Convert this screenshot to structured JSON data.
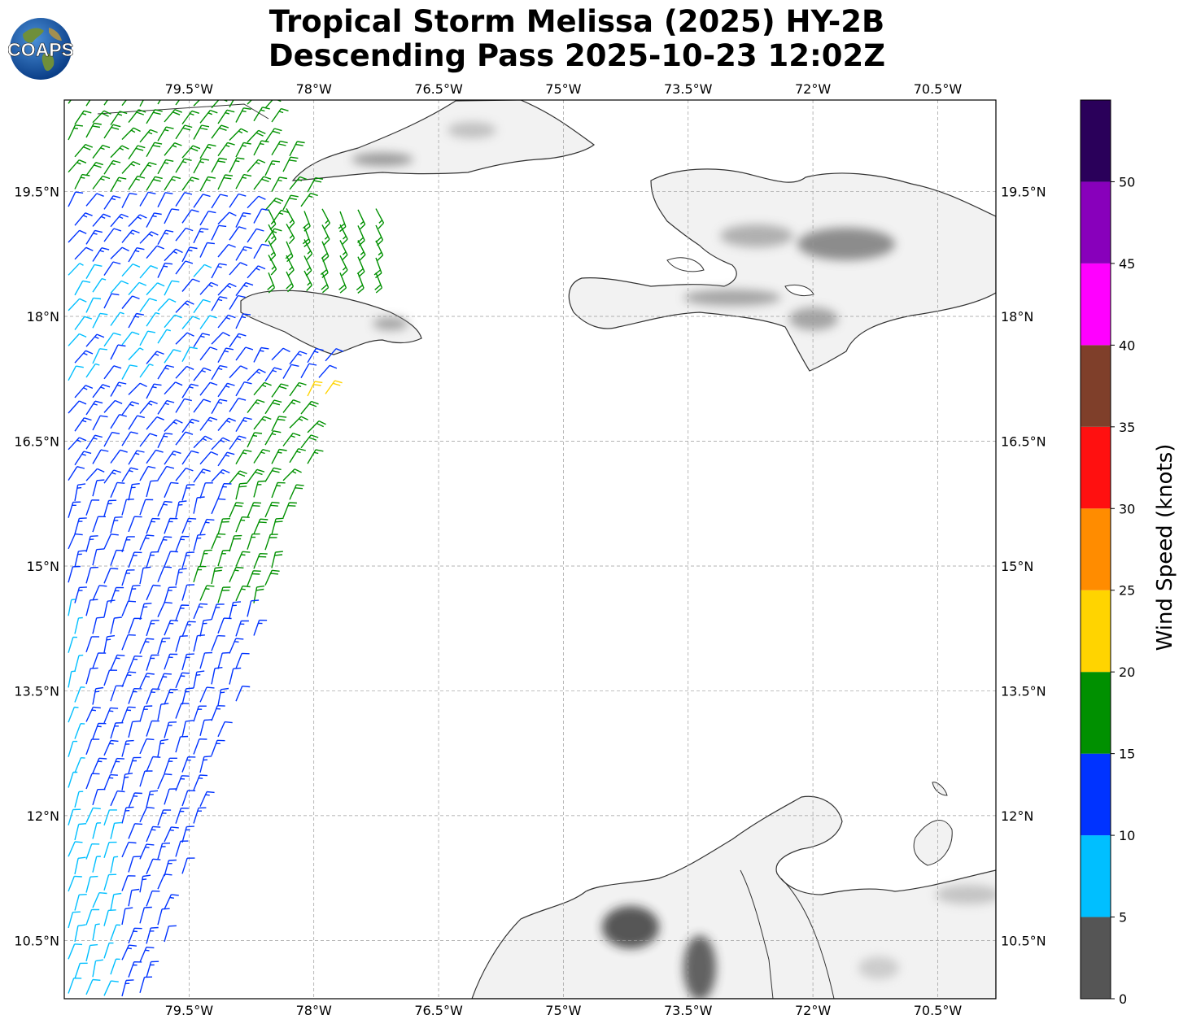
{
  "title": {
    "line1": "Tropical Storm Melissa (2025) HY-2B",
    "line2": "Descending Pass 2025-10-23 12:02Z"
  },
  "logo": {
    "text": "COAPS",
    "icon": "globe-logo-icon"
  },
  "map": {
    "lon_range": [
      -81.0,
      -69.8
    ],
    "lat_range": [
      9.8,
      20.6
    ],
    "lon_ticks": [
      {
        "value": -79.5,
        "label": "79.5°W"
      },
      {
        "value": -78.0,
        "label": "78°W"
      },
      {
        "value": -76.5,
        "label": "76.5°W"
      },
      {
        "value": -75.0,
        "label": "75°W"
      },
      {
        "value": -73.5,
        "label": "73.5°W"
      },
      {
        "value": -72.0,
        "label": "72°W"
      },
      {
        "value": -70.5,
        "label": "70.5°W"
      }
    ],
    "lat_ticks": [
      {
        "value": 19.5,
        "label": "19.5°N"
      },
      {
        "value": 18.0,
        "label": "18°N"
      },
      {
        "value": 16.5,
        "label": "16.5°N"
      },
      {
        "value": 15.0,
        "label": "15°N"
      },
      {
        "value": 13.5,
        "label": "13.5°N"
      },
      {
        "value": 12.0,
        "label": "12°N"
      },
      {
        "value": 10.5,
        "label": "10.5°N"
      }
    ],
    "grid": true,
    "land_shading": "grayscale terrain"
  },
  "colorbar": {
    "label": "Wind Speed (knots)",
    "min": 0,
    "max": 55,
    "tick_labels": [
      "0",
      "5",
      "10",
      "15",
      "20",
      "25",
      "30",
      "35",
      "40",
      "45",
      "50"
    ],
    "bins": [
      {
        "from": 0,
        "to": 5,
        "color": "#555555"
      },
      {
        "from": 5,
        "to": 10,
        "color": "#00bfff"
      },
      {
        "from": 10,
        "to": 15,
        "color": "#0033ff"
      },
      {
        "from": 15,
        "to": 20,
        "color": "#009000"
      },
      {
        "from": 20,
        "to": 25,
        "color": "#ffd400"
      },
      {
        "from": 25,
        "to": 30,
        "color": "#ff8c00"
      },
      {
        "from": 30,
        "to": 35,
        "color": "#ff1010"
      },
      {
        "from": 35,
        "to": 40,
        "color": "#7f3f2a"
      },
      {
        "from": 40,
        "to": 45,
        "color": "#ff00ff"
      },
      {
        "from": 45,
        "to": 50,
        "color": "#8800bb"
      },
      {
        "from": 50,
        "to": 55,
        "color": "#2a005a"
      }
    ]
  }
}
